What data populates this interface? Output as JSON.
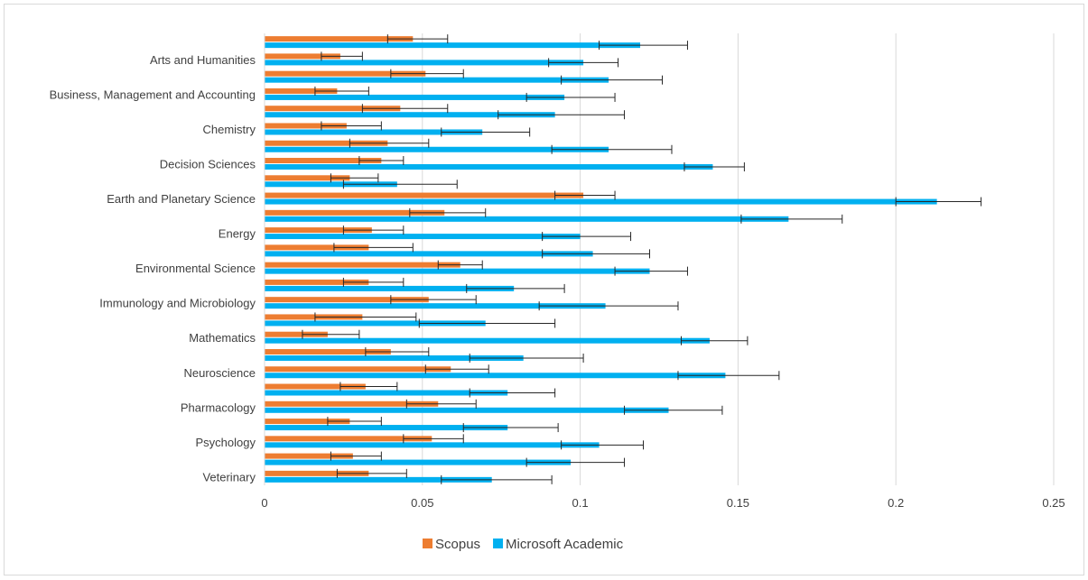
{
  "chart_data": {
    "type": "bar",
    "orientation": "horizontal",
    "error_bars": true,
    "grid": "vertical",
    "legend_position": "bottom",
    "xlim": [
      0,
      0.25
    ],
    "ticks": [
      "0",
      "0.05",
      "0.1",
      "0.15",
      "0.2",
      "0.25"
    ],
    "tick_values": [
      0,
      0.05,
      0.1,
      0.15,
      0.2,
      0.25
    ],
    "categories": [
      "",
      "Arts and Humanities",
      "",
      "Business, Management and Accounting",
      "",
      "Chemistry",
      "",
      "Decision Sciences",
      "",
      "Earth and Planetary Science",
      "",
      "Energy",
      "",
      "Environmental Science",
      "",
      "Immunology and Microbiology",
      "",
      "Mathematics",
      "",
      "Neuroscience",
      "",
      "Pharmacology",
      "",
      "Psychology",
      "",
      "Veterinary"
    ],
    "series": [
      {
        "name": "Scopus",
        "color": "#ed7d31",
        "values": [
          0.047,
          0.024,
          0.051,
          0.023,
          0.043,
          0.026,
          0.039,
          0.037,
          0.027,
          0.101,
          0.057,
          0.034,
          0.033,
          0.062,
          0.033,
          0.052,
          0.031,
          0.02,
          0.04,
          0.059,
          0.032,
          0.055,
          0.027,
          0.053,
          0.028,
          0.033
        ],
        "err_low": [
          0.039,
          0.018,
          0.04,
          0.016,
          0.031,
          0.018,
          0.027,
          0.03,
          0.021,
          0.092,
          0.046,
          0.025,
          0.022,
          0.055,
          0.025,
          0.04,
          0.016,
          0.012,
          0.032,
          0.051,
          0.024,
          0.045,
          0.02,
          0.044,
          0.021,
          0.023
        ],
        "err_high": [
          0.058,
          0.031,
          0.063,
          0.033,
          0.058,
          0.037,
          0.052,
          0.044,
          0.036,
          0.111,
          0.07,
          0.044,
          0.047,
          0.069,
          0.044,
          0.067,
          0.048,
          0.03,
          0.052,
          0.071,
          0.042,
          0.067,
          0.037,
          0.063,
          0.037,
          0.045
        ]
      },
      {
        "name": "Microsoft Academic",
        "color": "#00b0f0",
        "values": [
          0.119,
          0.101,
          0.109,
          0.095,
          0.092,
          0.069,
          0.109,
          0.142,
          0.042,
          0.213,
          0.166,
          0.1,
          0.104,
          0.122,
          0.079,
          0.108,
          0.07,
          0.141,
          0.082,
          0.146,
          0.077,
          0.128,
          0.077,
          0.106,
          0.097,
          0.072
        ],
        "err_low": [
          0.106,
          0.09,
          0.094,
          0.083,
          0.074,
          0.056,
          0.091,
          0.133,
          0.025,
          0.2,
          0.151,
          0.088,
          0.088,
          0.111,
          0.064,
          0.087,
          0.049,
          0.132,
          0.065,
          0.131,
          0.065,
          0.114,
          0.063,
          0.094,
          0.083,
          0.056
        ],
        "err_high": [
          0.134,
          0.112,
          0.126,
          0.111,
          0.114,
          0.084,
          0.129,
          0.152,
          0.061,
          0.227,
          0.183,
          0.116,
          0.122,
          0.134,
          0.095,
          0.131,
          0.092,
          0.153,
          0.101,
          0.163,
          0.092,
          0.145,
          0.093,
          0.12,
          0.114,
          0.091
        ]
      }
    ]
  }
}
